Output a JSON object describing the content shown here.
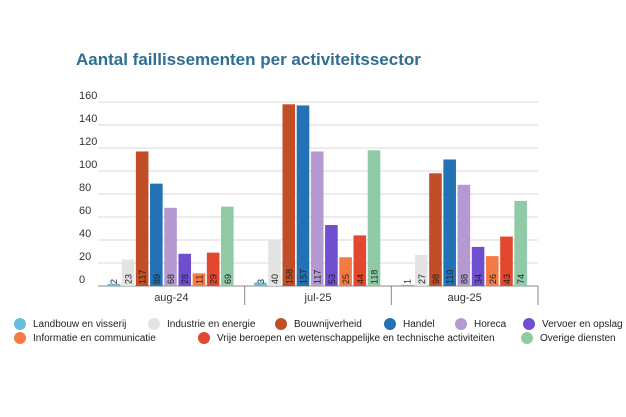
{
  "chart_data": {
    "type": "bar",
    "title": "Aantal faillissementen per activiteitssector",
    "xlabel": "",
    "ylabel": "",
    "ylim": [
      0,
      160
    ],
    "yticks": [
      0,
      20,
      40,
      60,
      80,
      100,
      120,
      140,
      160
    ],
    "grid": true,
    "legend_position": "bottom",
    "categories": [
      "aug-24",
      "jul-25",
      "aug-25"
    ],
    "series": [
      {
        "name": "Landbouw en visserij",
        "color": "#6bbde0",
        "values": [
          2,
          3,
          1
        ],
        "labels": [
          "2",
          "3",
          "1"
        ]
      },
      {
        "name": "Industrie en energie",
        "color": "#e3e3e3",
        "values": [
          23,
          40,
          27
        ],
        "labels": [
          "23",
          "40",
          "27"
        ]
      },
      {
        "name": "Bouwnijverheid",
        "color": "#c24e28",
        "values": [
          117,
          158,
          98
        ],
        "labels": [
          "117",
          "158",
          "98"
        ]
      },
      {
        "name": "Handel",
        "color": "#2272b5",
        "values": [
          89,
          157,
          110
        ],
        "labels": [
          "89",
          "157",
          "110"
        ]
      },
      {
        "name": "Horeca",
        "color": "#b49ad1",
        "values": [
          68,
          117,
          88
        ],
        "labels": [
          "68",
          "117",
          "88"
        ]
      },
      {
        "name": "Vervoer en opslag",
        "color": "#6f4ed0",
        "values": [
          28,
          53,
          34
        ],
        "labels": [
          "28",
          "53",
          "34"
        ]
      },
      {
        "name": "Informatie en communicatie",
        "color": "#f47b45",
        "values": [
          11,
          25,
          26
        ],
        "labels": [
          "11",
          "25",
          "26"
        ]
      },
      {
        "name": "Vrije beroepen en wetenschappelijke en technische activiteiten",
        "color": "#e2482e",
        "values": [
          29,
          44,
          43
        ],
        "labels": [
          "29",
          "44",
          "43"
        ]
      },
      {
        "name": "Overige diensten",
        "color": "#8ecba6",
        "values": [
          69,
          118,
          74
        ],
        "labels": [
          "69",
          "118",
          "74"
        ]
      }
    ]
  }
}
